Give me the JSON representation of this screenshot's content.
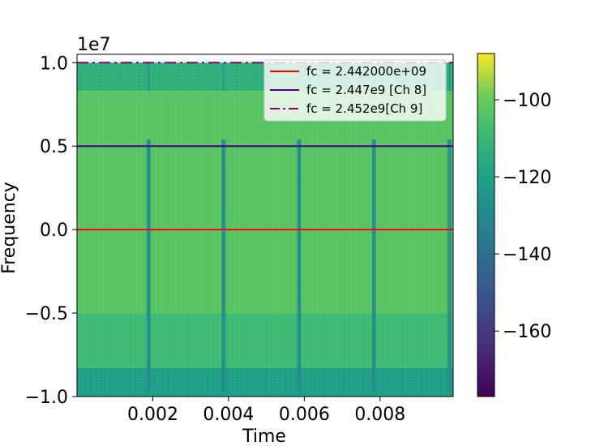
{
  "chart_data": {
    "type": "heatmap",
    "title": "",
    "xlabel": "Time",
    "ylabel": "Frequency",
    "y_offset_label": "1e7",
    "xlim": [
      0.0,
      0.00993
    ],
    "ylim": [
      -1.0,
      1.05
    ],
    "xticks": [
      0.002,
      0.004,
      0.006,
      0.008
    ],
    "xtick_labels": [
      "0.002",
      "0.004",
      "0.006",
      "0.008"
    ],
    "yticks": [
      1.0,
      0.5,
      0.0,
      -0.5,
      -1.0
    ],
    "ytick_labels": [
      "1.0",
      "0.5",
      "0.0",
      "−0.5",
      "−1.0"
    ],
    "colormap": "viridis",
    "colorbar": {
      "range": [
        -177,
        -88
      ],
      "ticks": [
        -100,
        -120,
        -140,
        -160
      ],
      "tick_labels": [
        "−100",
        "−120",
        "−140",
        "−160"
      ]
    },
    "heatmap_bands": [
      {
        "y": [
          0.83,
          1.0
        ],
        "value": -113
      },
      {
        "y": [
          -0.5,
          0.83
        ],
        "value": -103
      },
      {
        "y": [
          -0.83,
          -0.5
        ],
        "value": -108
      },
      {
        "y": [
          -1.0,
          -0.83
        ],
        "value": -120
      }
    ],
    "burst_gaps": {
      "x": [
        0.00189,
        0.00387,
        0.00586,
        0.00784,
        0.00983
      ],
      "y_range": [
        -0.97,
        0.54
      ],
      "value": -128
    },
    "series": [
      {
        "name": "fc = 2.442000e+09",
        "y": 0.0,
        "color": "#ff0000",
        "style": "solid"
      },
      {
        "name": "fc = 2.447e9 [Ch 8]",
        "y": 0.5,
        "color": "#4b0082",
        "style": "solid"
      },
      {
        "name": "fc = 2.452e9[Ch 9]",
        "y": 1.0,
        "color": "#800080",
        "style": "dashdot"
      }
    ],
    "legend_position": "top-right",
    "grid": false
  }
}
